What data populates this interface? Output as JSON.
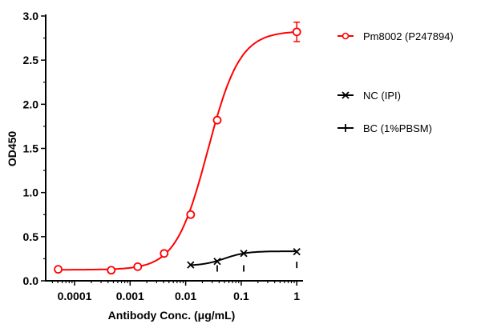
{
  "chart_data": {
    "type": "scatter",
    "xlabel": "Antibody Conc. (μg/mL)",
    "ylabel": "OD450",
    "x_scale": "log",
    "xlim": [
      3e-05,
      1.2
    ],
    "ylim": [
      0,
      3.0
    ],
    "x_ticks": [
      0.0001,
      0.001,
      0.01,
      0.1,
      1
    ],
    "x_tick_labels": [
      "0.0001",
      "0.001",
      "0.01",
      "0.1",
      "1"
    ],
    "y_ticks": [
      0,
      0.5,
      1.0,
      1.5,
      2.0,
      2.5,
      3.0
    ],
    "y_tick_labels": [
      "0.0",
      "0.5",
      "1.0",
      "1.5",
      "2.0",
      "2.5",
      "3.0"
    ],
    "grid": false,
    "legend_position": "right",
    "series": [
      {
        "name": "Pm8002 (P247894)",
        "color": "#ff0000",
        "marker": "circle",
        "x": [
          5.08e-05,
          0.000457,
          0.00137,
          0.0041,
          0.0123,
          0.037,
          1
        ],
        "y": [
          0.13,
          0.12,
          0.16,
          0.31,
          0.75,
          1.82,
          2.82
        ],
        "error": [
          0,
          0,
          0,
          0,
          0,
          0,
          0.11
        ]
      },
      {
        "name": "NC (IPI)",
        "color": "#000000",
        "marker": "x",
        "x": [
          0.0123,
          0.037,
          0.111,
          1
        ],
        "y": [
          0.18,
          0.22,
          0.31,
          0.33
        ]
      },
      {
        "name": "BC (1%PBSM)",
        "color": "#000000",
        "marker": "plus",
        "x": [
          0.037,
          0.111,
          1
        ],
        "y": [
          0.14,
          0.14,
          0.18
        ]
      }
    ]
  }
}
